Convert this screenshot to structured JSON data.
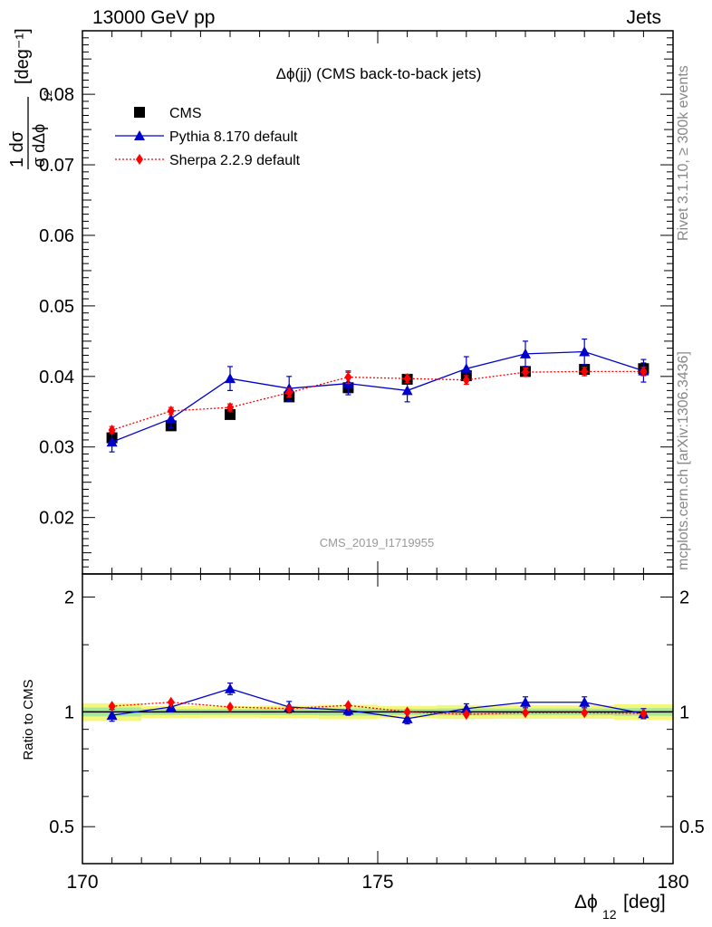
{
  "header": {
    "left": "13000 GeV pp",
    "right": "Jets"
  },
  "side_labels": {
    "rivet": "Rivet 3.1.10, ≥ 300k events",
    "mcplots": "mcplots.cern.ch [arXiv:1306.3436]"
  },
  "chart_data": {
    "type": "scatter",
    "title": "Δϕ(jj) (CMS back-to-back jets)",
    "watermark": "CMS_2019_I1719955",
    "xlabel": "Δϕ",
    "xlabel_sub": "12",
    "xlabel_unit": "[deg]",
    "ylabel": "[deg⁻¹]",
    "ylabel_fraction": {
      "numerator": "1  dσ",
      "denominator": "σ dΔϕ"
    },
    "ylabel_sub": "12",
    "ratio_ylabel": "Ratio to CMS",
    "xlim": [
      170,
      180
    ],
    "ylim": [
      0.012,
      0.089
    ],
    "ratio_ylim": [
      0.4,
      2.3
    ],
    "ratio_log": true,
    "xticks": [
      "170",
      "175",
      "180"
    ],
    "yticks": [
      "0.02",
      "0.03",
      "0.04",
      "0.05",
      "0.06",
      "0.07",
      "0.08"
    ],
    "ratio_yticks": [
      "0.5",
      "1",
      "2"
    ],
    "legend_position": "top-left",
    "x": [
      170.5,
      171.5,
      172.5,
      173.5,
      174.5,
      175.5,
      176.5,
      177.5,
      178.5,
      179.5
    ],
    "series": [
      {
        "name": "CMS",
        "color": "#000000",
        "marker": "square",
        "values": [
          0.0313,
          0.033,
          0.0346,
          0.0371,
          0.0384,
          0.0396,
          0.0401,
          0.0407,
          0.041,
          0.0411
        ],
        "errors": [
          0.0007,
          0.0005,
          0.0005,
          0.0006,
          0.0007,
          0.0006,
          0.0007,
          0.0007,
          0.0007,
          0.0008
        ],
        "ratio": [
          1.0,
          1.0,
          1.0,
          1.0,
          1.0,
          1.0,
          1.0,
          1.0,
          1.0,
          1.0
        ]
      },
      {
        "name": "Pythia 8.170 default",
        "color": "#0000cc",
        "marker": "triangle",
        "line": "solid",
        "values": [
          0.0307,
          0.034,
          0.0397,
          0.0383,
          0.039,
          0.038,
          0.0411,
          0.0432,
          0.0435,
          0.0408
        ],
        "errors": [
          0.0014,
          0.0013,
          0.0017,
          0.0017,
          0.0016,
          0.0016,
          0.0017,
          0.0018,
          0.0018,
          0.0016
        ],
        "ratio": [
          0.98,
          1.03,
          1.15,
          1.03,
          1.01,
          0.96,
          1.02,
          1.06,
          1.06,
          0.99
        ],
        "ratio_errors": [
          0.035,
          0.03,
          0.04,
          0.035,
          0.03,
          0.03,
          0.03,
          0.035,
          0.035,
          0.03
        ]
      },
      {
        "name": "Sherpa 2.2.9 default",
        "color": "#ff0000",
        "marker": "diamond",
        "line": "dotted",
        "values": [
          0.0324,
          0.0351,
          0.0356,
          0.0377,
          0.0399,
          0.0397,
          0.0395,
          0.0406,
          0.0407,
          0.0407
        ],
        "errors": [
          0.0005,
          0.0005,
          0.0005,
          0.0006,
          0.0009,
          0.0006,
          0.0006,
          0.0006,
          0.0006,
          0.0006
        ],
        "ratio": [
          1.035,
          1.06,
          1.03,
          1.02,
          1.04,
          1.0,
          0.985,
          0.995,
          0.995,
          0.99
        ]
      }
    ]
  }
}
